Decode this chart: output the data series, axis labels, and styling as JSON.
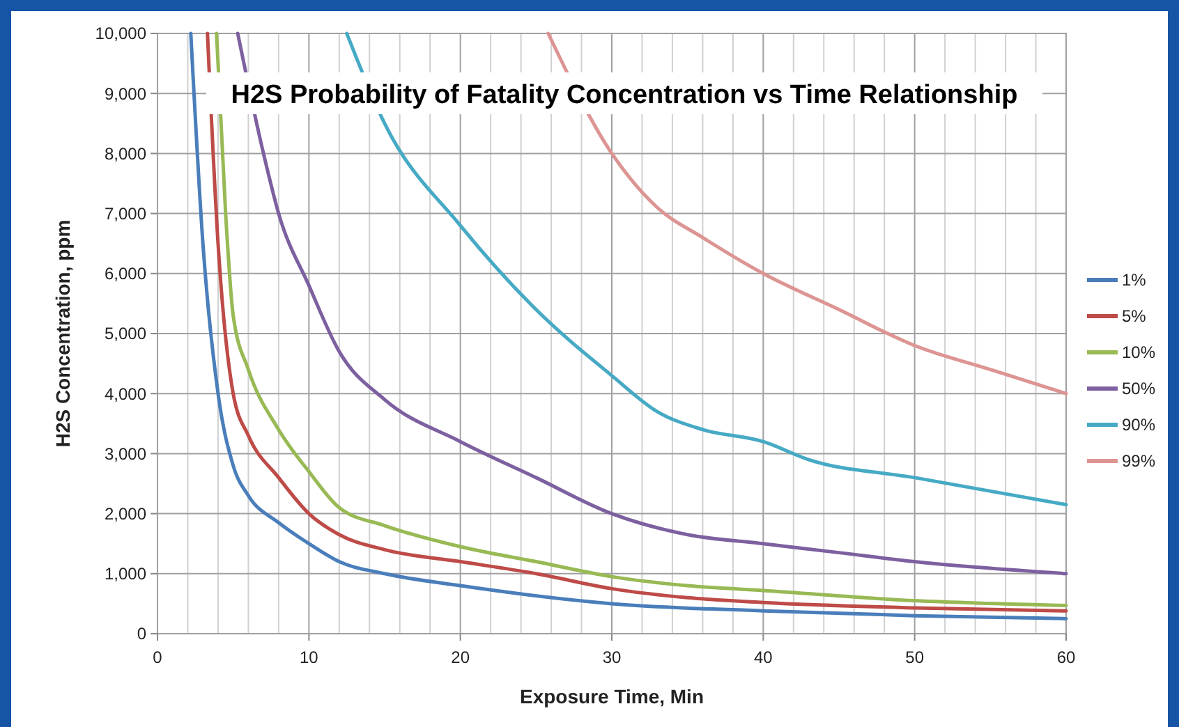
{
  "chart_data": {
    "type": "line",
    "title": "H2S Probability of Fatality Concentration vs Time Relationship",
    "xlabel": "Exposure Time, Min",
    "ylabel": "H2S Concentration, ppm",
    "xlim": [
      0,
      60
    ],
    "xticks": [
      0,
      {
        "value": 2,
        "label": null
      },
      {
        "value": 4,
        "label": null
      },
      {
        "value": 6,
        "label": null
      },
      {
        "value": 8,
        "label": null
      },
      10,
      {
        "value": 12,
        "label": null
      },
      {
        "value": 14,
        "label": null
      },
      {
        "value": 16,
        "label": null
      },
      {
        "value": 18,
        "label": null
      },
      20,
      {
        "value": 22,
        "label": null
      },
      {
        "value": 24,
        "label": null
      },
      {
        "value": 26,
        "label": null
      },
      {
        "value": 28,
        "label": null
      },
      30,
      {
        "value": 32,
        "label": null
      },
      {
        "value": 34,
        "label": null
      },
      {
        "value": 36,
        "label": null
      },
      {
        "value": 38,
        "label": null
      },
      40,
      {
        "value": 42,
        "label": null
      },
      {
        "value": 44,
        "label": null
      },
      {
        "value": 46,
        "label": null
      },
      {
        "value": 48,
        "label": null
      },
      50,
      {
        "value": 52,
        "label": null
      },
      {
        "value": 54,
        "label": null
      },
      {
        "value": 56,
        "label": null
      },
      {
        "value": 58,
        "label": null
      },
      60
    ],
    "ylim": [
      0,
      10000
    ],
    "yticks": [
      {
        "value": 0,
        "label": "0"
      },
      {
        "value": 1000,
        "label": "1,000"
      },
      {
        "value": 2000,
        "label": "2,000"
      },
      {
        "value": 3000,
        "label": "3,000"
      },
      {
        "value": 4000,
        "label": "4,000"
      },
      {
        "value": 5000,
        "label": "5,000"
      },
      {
        "value": 6000,
        "label": "6,000"
      },
      {
        "value": 7000,
        "label": "7,000"
      },
      {
        "value": 8000,
        "label": "8,000"
      },
      {
        "value": 9000,
        "label": "9,000"
      },
      {
        "value": 10000,
        "label": "10,000"
      }
    ],
    "grid": true,
    "legend": "right",
    "marker": "none",
    "line_style": "solid",
    "series": [
      {
        "name": "1%",
        "color": "#4a7ebb",
        "x": [
          2.2,
          3,
          4,
          5,
          6,
          8,
          10,
          12,
          15,
          20,
          30,
          40,
          50,
          60
        ],
        "values": [
          10000,
          6500,
          4000,
          2800,
          2300,
          1850,
          1500,
          1200,
          1000,
          800,
          500,
          380,
          300,
          250
        ]
      },
      {
        "name": "5%",
        "color": "#be4b48",
        "x": [
          3.3,
          4,
          5,
          6,
          8,
          10,
          12,
          15,
          20,
          25,
          30,
          35,
          40,
          50,
          60
        ],
        "values": [
          10000,
          6500,
          4000,
          3300,
          2600,
          2000,
          1650,
          1400,
          1200,
          1000,
          750,
          600,
          520,
          430,
          380
        ]
      },
      {
        "name": "10%",
        "color": "#98b954",
        "x": [
          3.9,
          4.5,
          5,
          6,
          8,
          10,
          12,
          15,
          20,
          25,
          30,
          35,
          40,
          50,
          60
        ],
        "values": [
          10000,
          7000,
          5300,
          4400,
          3400,
          2700,
          2100,
          1800,
          1450,
          1200,
          950,
          800,
          720,
          550,
          470
        ]
      },
      {
        "name": "50%",
        "color": "#7d60a0",
        "x": [
          5.3,
          7,
          8,
          10,
          12,
          15,
          20,
          25,
          30,
          35,
          40,
          45,
          50,
          60
        ],
        "values": [
          10000,
          8000,
          7000,
          5800,
          4700,
          3900,
          3200,
          2600,
          2000,
          1650,
          1500,
          1350,
          1200,
          1000
        ]
      },
      {
        "name": "90%",
        "color": "#46aac5",
        "x": [
          12.5,
          15,
          20,
          25,
          30,
          33,
          36,
          40,
          43,
          50,
          60
        ],
        "values": [
          10000,
          8500,
          6800,
          5400,
          4300,
          3700,
          3400,
          3200,
          2900,
          2600,
          2150
        ]
      },
      {
        "name": "99%",
        "color": "#dd9593",
        "x": [
          25.8,
          30,
          33,
          36,
          40,
          45,
          50,
          55,
          60
        ],
        "values": [
          10000,
          8000,
          7100,
          6600,
          6000,
          5400,
          4800,
          4400,
          4000
        ]
      }
    ]
  }
}
